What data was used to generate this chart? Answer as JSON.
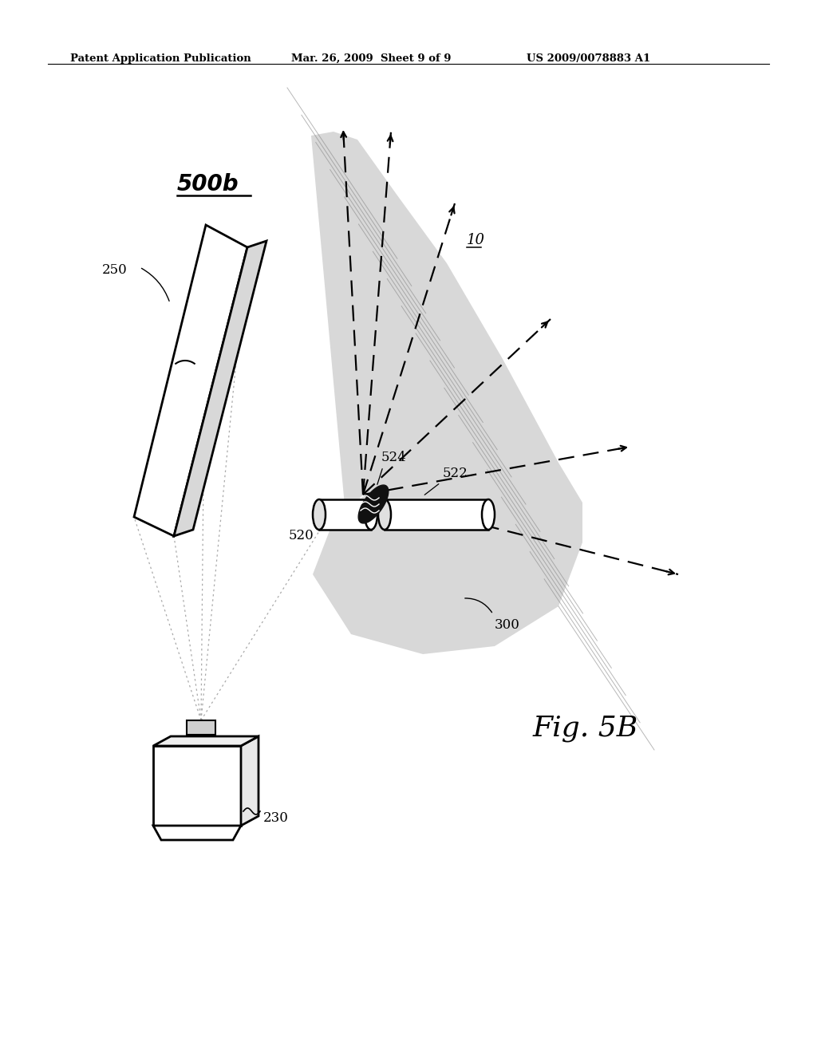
{
  "header_left": "Patent Application Publication",
  "header_mid": "Mar. 26, 2009  Sheet 9 of 9",
  "header_right": "US 2009/0078883 A1",
  "fig_label": "Fig. 5B",
  "label_500b": "500b",
  "label_250": "250",
  "label_230": "230",
  "label_520": "520",
  "label_522": "522",
  "label_524": "524",
  "label_300": "300",
  "label_10": "10",
  "bg_color": "#ffffff",
  "line_color": "#000000",
  "shaded_color": "#b8b8b8",
  "shaded_alpha": 0.55
}
